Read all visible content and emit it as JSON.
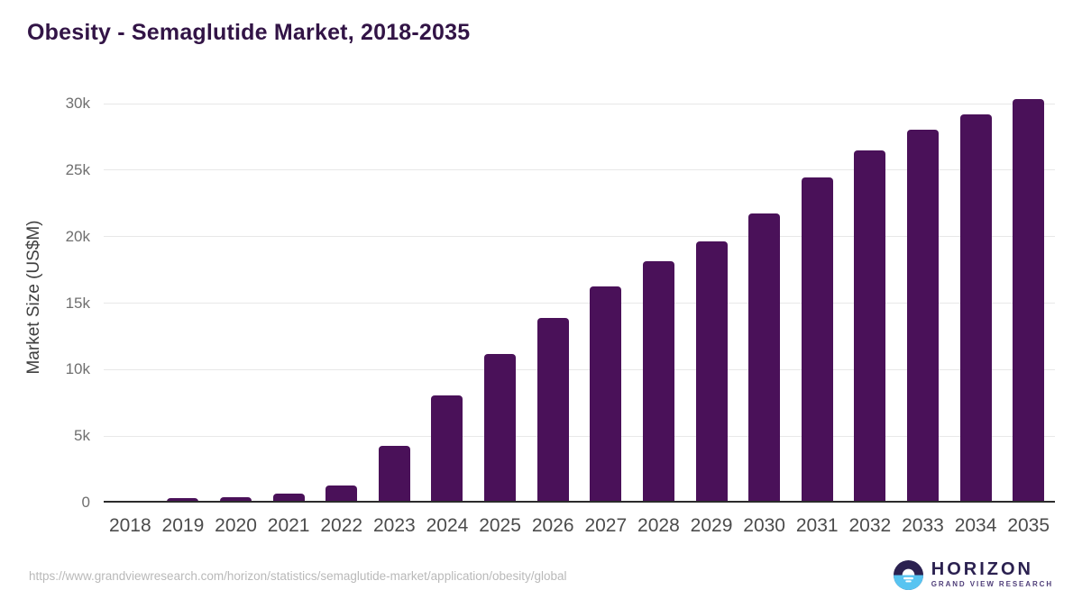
{
  "header": {
    "title": "Obesity - Semaglutide Market, 2018-2035"
  },
  "chart_data": {
    "type": "bar",
    "title": "Obesity - Semaglutide Market, 2018-2035",
    "xlabel": "",
    "ylabel": "Market Size (US$M)",
    "categories": [
      "2018",
      "2019",
      "2020",
      "2021",
      "2022",
      "2023",
      "2024",
      "2025",
      "2026",
      "2027",
      "2028",
      "2029",
      "2030",
      "2031",
      "2032",
      "2033",
      "2034",
      "2035"
    ],
    "values": [
      30,
      250,
      350,
      600,
      1250,
      4200,
      8000,
      11100,
      13800,
      16200,
      18050,
      19600,
      21650,
      24350,
      26400,
      27950,
      29150,
      30250
    ],
    "ylim": [
      0,
      30000
    ],
    "yticks": [
      {
        "label": "0",
        "value": 0
      },
      {
        "label": "5k",
        "value": 5000
      },
      {
        "label": "10k",
        "value": 10000
      },
      {
        "label": "15k",
        "value": 15000
      },
      {
        "label": "20k",
        "value": 20000
      },
      {
        "label": "25k",
        "value": 25000
      },
      {
        "label": "30k",
        "value": 30000
      }
    ],
    "grid": "horizontal-light-gray",
    "legend": "none",
    "bar_color": "#4a1159"
  },
  "footer": {
    "url": "https://www.grandviewresearch.com/horizon/statistics/semaglutide-market/application/obesity/global",
    "logo": {
      "name": "HORIZON",
      "subtitle": "GRAND VIEW RESEARCH"
    }
  },
  "colors": {
    "title": "#321446",
    "bar": "#4a1159",
    "gridline": "#e8e8e8",
    "baseline": "#2b2b2b",
    "tick_label": "#6f6f6f",
    "x_label": "#4c4c4c",
    "url_text": "#b9b9b9",
    "logo_dark_purple": "#2b2150",
    "logo_light_blue": "#58c4f1",
    "logo_subtitle": "#4f3e79"
  }
}
